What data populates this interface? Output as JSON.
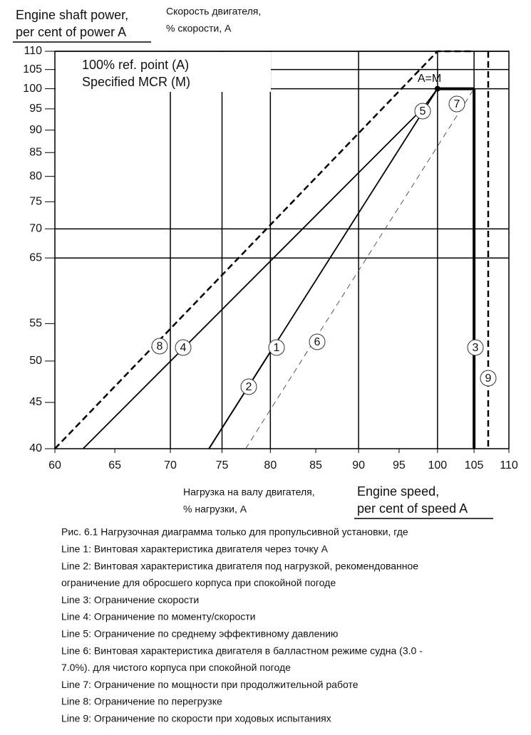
{
  "chart_data": {
    "type": "line",
    "ylabel": [
      "Engine shaft power,",
      "per cent of power A"
    ],
    "ylabel_ru": [
      "Скорость двигателя,",
      "% скорости, A"
    ],
    "xlabel_ru": [
      "Нагрузка на валу двигателя,",
      "% нагрузки, A"
    ],
    "xlabel": [
      "Engine speed,",
      "per cent of speed A"
    ],
    "xscale": "log",
    "yscale": "log",
    "xlim": [
      60,
      110
    ],
    "ylim": [
      40,
      110
    ],
    "xticks": [
      60,
      65,
      70,
      75,
      80,
      85,
      90,
      95,
      100,
      105,
      110
    ],
    "yticks": [
      40,
      45,
      50,
      55,
      65,
      70,
      75,
      80,
      85,
      90,
      95,
      100,
      105,
      110
    ],
    "xgrid": [
      70,
      75,
      80,
      90,
      100,
      105
    ],
    "ygrid": [
      65,
      70,
      100,
      105,
      110
    ],
    "ref_box": [
      "100% ref. point  (A)",
      "Specified MCR  (M)"
    ],
    "point": {
      "label": "A=M",
      "x": 100,
      "y": 100
    },
    "series": [
      {
        "name": "1",
        "color": "#000000",
        "style": "solid",
        "x": [
          73.7,
          100
        ],
        "values": [
          40,
          100
        ]
      },
      {
        "name": "2",
        "color": "#000000",
        "style": "solid",
        "x": [
          73.7,
          80
        ],
        "values": [
          40,
          51.2
        ]
      },
      {
        "name": "3",
        "color": "#000000",
        "style": "thick",
        "x": [
          105,
          105
        ],
        "values": [
          40,
          100
        ]
      },
      {
        "name": "4",
        "color": "#000000",
        "style": "solid",
        "x": [
          62.3,
          98
        ],
        "values": [
          40,
          95
        ]
      },
      {
        "name": "5",
        "color": "#000000",
        "style": "solid",
        "x": [
          98,
          100
        ],
        "values": [
          95,
          100
        ]
      },
      {
        "name": "6",
        "color": "#555555",
        "style": "thin-dashed",
        "x": [
          77.4,
          105
        ],
        "values": [
          40,
          100
        ]
      },
      {
        "name": "7",
        "color": "#000000",
        "style": "thick",
        "x": [
          100,
          105
        ],
        "values": [
          100,
          100
        ]
      },
      {
        "name": "8",
        "color": "#000000",
        "style": "dashed",
        "x": [
          60,
          100,
          105
        ],
        "values": [
          40,
          110,
          110
        ]
      },
      {
        "name": "9",
        "color": "#000000",
        "style": "dashed",
        "x": [
          107,
          107
        ],
        "values": [
          110,
          40
        ]
      }
    ],
    "caption": [
      "Рис. 6.1 Нагрузочная диаграмма только для пропульсивной установки, где",
      "Line 1: Винтовая характеристика двигателя через точку A",
      "Line 2: Винтовая характеристика двигателя под нагрузкой, рекомендованное",
      "ограничение для обросшего корпуса при спокойной погоде",
      "Line 3: Ограничение скорости",
      "Line 4: Ограничение по моменту/скорости",
      "Line 5: Ограничение по среднему эффективному давлению",
      "Line 6: Винтовая характеристика двигателя в балластном режиме судна (3.0 -",
      "7.0%). для чистого корпуса при спокойной погоде",
      "Line 7: Ограничение по мощности при продолжительной работе",
      "Line 8: Ограничение по перегрузке",
      "Line 9: Ограничение по скорости при ходовых испытаниях"
    ]
  }
}
